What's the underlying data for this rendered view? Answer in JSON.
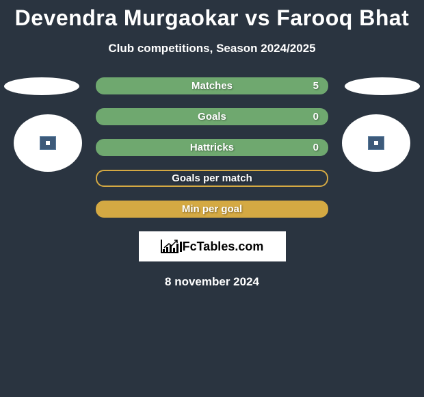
{
  "title": "Devendra Murgaokar vs Farooq Bhat",
  "subtitle": "Club competitions, Season 2024/2025",
  "date": "8 november 2024",
  "logo_text": "FcTables.com",
  "background_color": "#2a3440",
  "text_color": "#ffffff",
  "avatar_bg": "#ffffff",
  "stats": [
    {
      "label": "Matches",
      "value_right": "5",
      "fill_color": "#6fa86f",
      "border_color": "#6fa86f",
      "show_value": true
    },
    {
      "label": "Goals",
      "value_right": "0",
      "fill_color": "#6fa86f",
      "border_color": "#6fa86f",
      "show_value": true
    },
    {
      "label": "Hattricks",
      "value_right": "0",
      "fill_color": "#6fa86f",
      "border_color": "#6fa86f",
      "show_value": true
    },
    {
      "label": "Goals per match",
      "value_right": "",
      "fill_color": "transparent",
      "border_color": "#d4a943",
      "show_value": false
    },
    {
      "label": "Min per goal",
      "value_right": "",
      "fill_color": "#d4a943",
      "border_color": "#d4a943",
      "show_value": false
    }
  ],
  "logo_bar_heights": [
    4,
    7,
    10,
    6,
    12,
    15
  ]
}
